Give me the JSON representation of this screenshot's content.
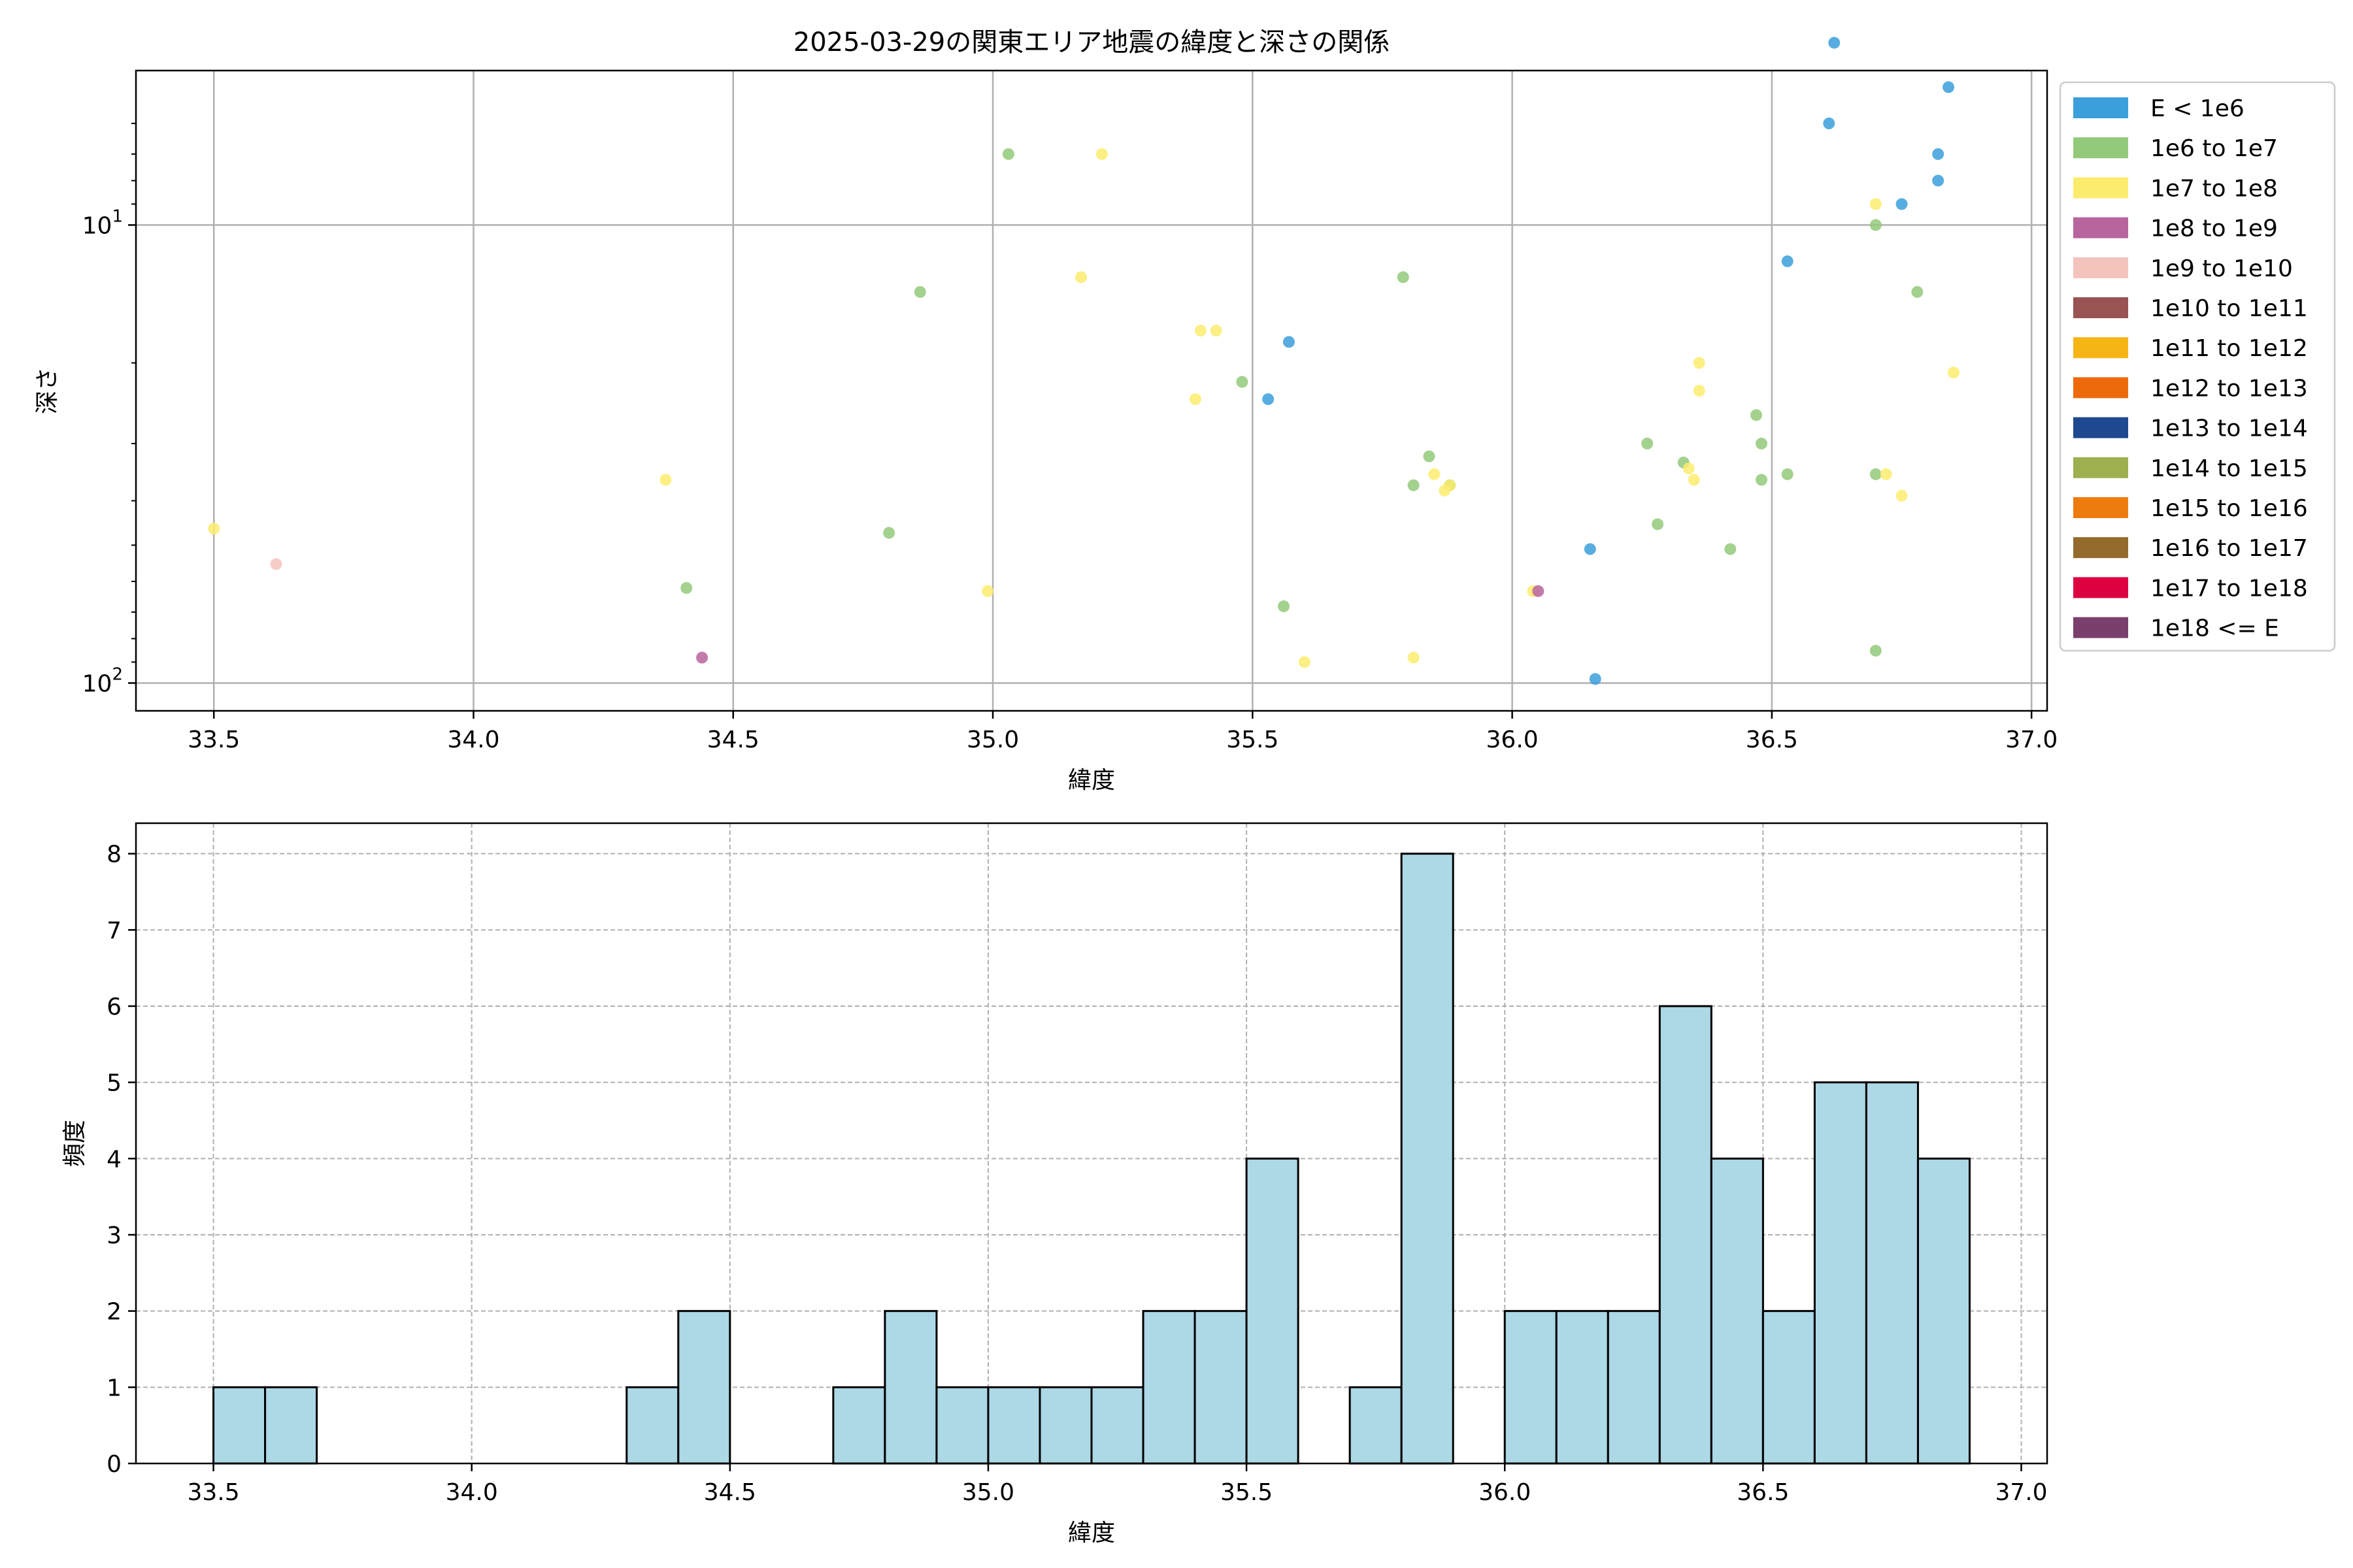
{
  "chart_data": [
    {
      "type": "scatter",
      "title": "2025-03-29の関東エリア地震の緯度と深さの関係",
      "xlabel": "緯度",
      "ylabel": "深さ",
      "xlim": [
        33.35,
        37.03
      ],
      "ylim": [
        115,
        4.6
      ],
      "y_scale": "log",
      "y_inverted": true,
      "grid": true,
      "x_ticks": [
        {
          "v": 33.5,
          "label": "33.5"
        },
        {
          "v": 34.0,
          "label": "34.0"
        },
        {
          "v": 34.5,
          "label": "34.5"
        },
        {
          "v": 35.0,
          "label": "35.0"
        },
        {
          "v": 35.5,
          "label": "35.5"
        },
        {
          "v": 36.0,
          "label": "36.0"
        },
        {
          "v": 36.5,
          "label": "36.5"
        },
        {
          "v": 37.0,
          "label": "37.0"
        }
      ],
      "y_ticks": [
        {
          "v": 10,
          "base": "10",
          "exp": "1"
        },
        {
          "v": 100,
          "base": "10",
          "exp": "2"
        }
      ],
      "legend_position": "outside-right",
      "legend": [
        {
          "label": "E < 1e6",
          "color": "#3b9fdb"
        },
        {
          "label": "1e6 to 1e7",
          "color": "#93c97a"
        },
        {
          "label": "1e7 to 1e8",
          "color": "#fcec6d"
        },
        {
          "label": "1e8 to 1e9",
          "color": "#b8649d"
        },
        {
          "label": "1e9 to 1e10",
          "color": "#f4c3bc"
        },
        {
          "label": "1e10 to 1e11",
          "color": "#985352"
        },
        {
          "label": "1e11 to 1e12",
          "color": "#f7b515"
        },
        {
          "label": "1e12 to 1e13",
          "color": "#ec6a0c"
        },
        {
          "label": "1e13 to 1e14",
          "color": "#1e4890"
        },
        {
          "label": "1e14 to 1e15",
          "color": "#9daf4f"
        },
        {
          "label": "1e15 to 1e16",
          "color": "#ee7b0e"
        },
        {
          "label": "1e16 to 1e17",
          "color": "#946b2d"
        },
        {
          "label": "1e17 to 1e18",
          "color": "#dc0340"
        },
        {
          "label": "1e18 <= E",
          "color": "#7a3f6c"
        }
      ],
      "series": [
        {
          "color": "#3b9fdb",
          "points": [
            [
              36.62,
              4.0
            ],
            [
              36.84,
              5.0
            ],
            [
              36.61,
              6.0
            ],
            [
              36.82,
              7.0
            ],
            [
              36.82,
              8.0
            ],
            [
              36.75,
              9.0
            ],
            [
              36.53,
              12.0
            ],
            [
              35.57,
              18.0
            ],
            [
              35.53,
              24.0
            ],
            [
              36.15,
              51.0
            ],
            [
              36.16,
              98.0
            ]
          ]
        },
        {
          "color": "#93c97a",
          "points": [
            [
              35.03,
              7.0
            ],
            [
              36.7,
              10.0
            ],
            [
              35.79,
              13.0
            ],
            [
              34.86,
              14.0
            ],
            [
              36.78,
              14.0
            ],
            [
              35.48,
              22.0
            ],
            [
              36.47,
              26.0
            ],
            [
              36.48,
              30.0
            ],
            [
              36.26,
              30.0
            ],
            [
              35.84,
              32.0
            ],
            [
              36.33,
              33.0
            ],
            [
              36.53,
              35.0
            ],
            [
              36.7,
              35.0
            ],
            [
              36.48,
              36.0
            ],
            [
              35.81,
              37.0
            ],
            [
              35.88,
              37.0
            ],
            [
              36.28,
              45.0
            ],
            [
              34.8,
              47.0
            ],
            [
              36.42,
              51.0
            ],
            [
              34.41,
              62.0
            ],
            [
              35.56,
              68.0
            ],
            [
              36.7,
              85.0
            ]
          ]
        },
        {
          "color": "#fcec6d",
          "points": [
            [
              35.21,
              7.0
            ],
            [
              36.7,
              9.0
            ],
            [
              35.17,
              13.0
            ],
            [
              35.4,
              17.0
            ],
            [
              35.43,
              17.0
            ],
            [
              36.36,
              20.0
            ],
            [
              36.85,
              21.0
            ],
            [
              36.36,
              23.0
            ],
            [
              35.39,
              24.0
            ],
            [
              36.34,
              34.0
            ],
            [
              35.85,
              35.0
            ],
            [
              36.72,
              35.0
            ],
            [
              34.37,
              36.0
            ],
            [
              36.35,
              36.0
            ],
            [
              35.87,
              38.0
            ],
            [
              35.88,
              37.0
            ],
            [
              36.75,
              39.0
            ],
            [
              33.5,
              46.0
            ],
            [
              34.99,
              63.0
            ],
            [
              36.04,
              63.0
            ],
            [
              35.6,
              90.0
            ],
            [
              35.81,
              88.0
            ]
          ]
        },
        {
          "color": "#b8649d",
          "points": [
            [
              34.44,
              88.0
            ],
            [
              36.05,
              63.0
            ]
          ]
        },
        {
          "color": "#f4c3bc",
          "points": [
            [
              33.62,
              55.0
            ]
          ]
        }
      ]
    },
    {
      "type": "bar",
      "subtype": "histogram",
      "xlabel": "緯度",
      "ylabel": "頻度",
      "xlim": [
        33.35,
        37.05
      ],
      "ylim": [
        0,
        8.4
      ],
      "bar_color": "#add8e6",
      "edge_color": "#000000",
      "grid": "dashed",
      "x_ticks": [
        {
          "v": 33.5,
          "label": "33.5"
        },
        {
          "v": 34.0,
          "label": "34.0"
        },
        {
          "v": 34.5,
          "label": "34.5"
        },
        {
          "v": 35.0,
          "label": "35.0"
        },
        {
          "v": 35.5,
          "label": "35.5"
        },
        {
          "v": 36.0,
          "label": "36.0"
        },
        {
          "v": 36.5,
          "label": "36.5"
        },
        {
          "v": 37.0,
          "label": "37.0"
        }
      ],
      "y_ticks": [
        "0",
        "1",
        "2",
        "3",
        "4",
        "5",
        "6",
        "7",
        "8"
      ],
      "bins": [
        {
          "x0": 33.5,
          "x1": 33.6,
          "count": 1
        },
        {
          "x0": 33.6,
          "x1": 33.7,
          "count": 1
        },
        {
          "x0": 34.3,
          "x1": 34.4,
          "count": 1
        },
        {
          "x0": 34.4,
          "x1": 34.5,
          "count": 2
        },
        {
          "x0": 34.7,
          "x1": 34.8,
          "count": 1
        },
        {
          "x0": 34.8,
          "x1": 34.9,
          "count": 2
        },
        {
          "x0": 34.9,
          "x1": 35.0,
          "count": 1
        },
        {
          "x0": 35.0,
          "x1": 35.1,
          "count": 1
        },
        {
          "x0": 35.1,
          "x1": 35.2,
          "count": 1
        },
        {
          "x0": 35.2,
          "x1": 35.3,
          "count": 1
        },
        {
          "x0": 35.3,
          "x1": 35.4,
          "count": 2
        },
        {
          "x0": 35.4,
          "x1": 35.5,
          "count": 2
        },
        {
          "x0": 35.5,
          "x1": 35.6,
          "count": 4
        },
        {
          "x0": 35.7,
          "x1": 35.8,
          "count": 1
        },
        {
          "x0": 35.8,
          "x1": 35.9,
          "count": 8
        },
        {
          "x0": 36.0,
          "x1": 36.1,
          "count": 2
        },
        {
          "x0": 36.1,
          "x1": 36.2,
          "count": 2
        },
        {
          "x0": 36.2,
          "x1": 36.3,
          "count": 2
        },
        {
          "x0": 36.3,
          "x1": 36.4,
          "count": 6
        },
        {
          "x0": 36.4,
          "x1": 36.5,
          "count": 4
        },
        {
          "x0": 36.5,
          "x1": 36.6,
          "count": 2
        },
        {
          "x0": 36.6,
          "x1": 36.7,
          "count": 5
        },
        {
          "x0": 36.7,
          "x1": 36.8,
          "count": 5
        },
        {
          "x0": 36.8,
          "x1": 36.9,
          "count": 4
        }
      ]
    }
  ]
}
